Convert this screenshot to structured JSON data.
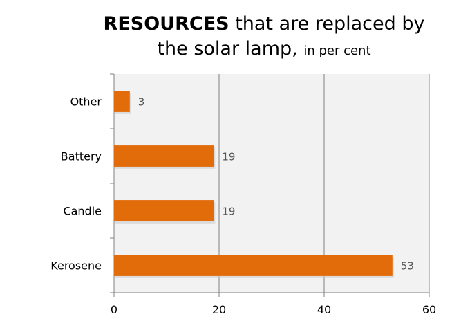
{
  "title": {
    "bold": "RESOURCES",
    "rest_line1": "that are replaced by",
    "line2": "the solar lamp,",
    "unit": "in per cent"
  },
  "colors": {
    "bar": "#E36C0A",
    "plot_background": "#F2F2F2",
    "gridline": "#808080"
  },
  "chart_data": {
    "type": "bar",
    "orientation": "horizontal",
    "categories": [
      "Other",
      "Battery",
      "Candle",
      "Kerosene"
    ],
    "values": [
      3,
      19,
      19,
      53
    ],
    "xlim": [
      0,
      60
    ],
    "xticks": [
      0,
      20,
      40,
      60
    ],
    "xlabel": "",
    "ylabel": "",
    "grid": true,
    "data_labels": true
  }
}
